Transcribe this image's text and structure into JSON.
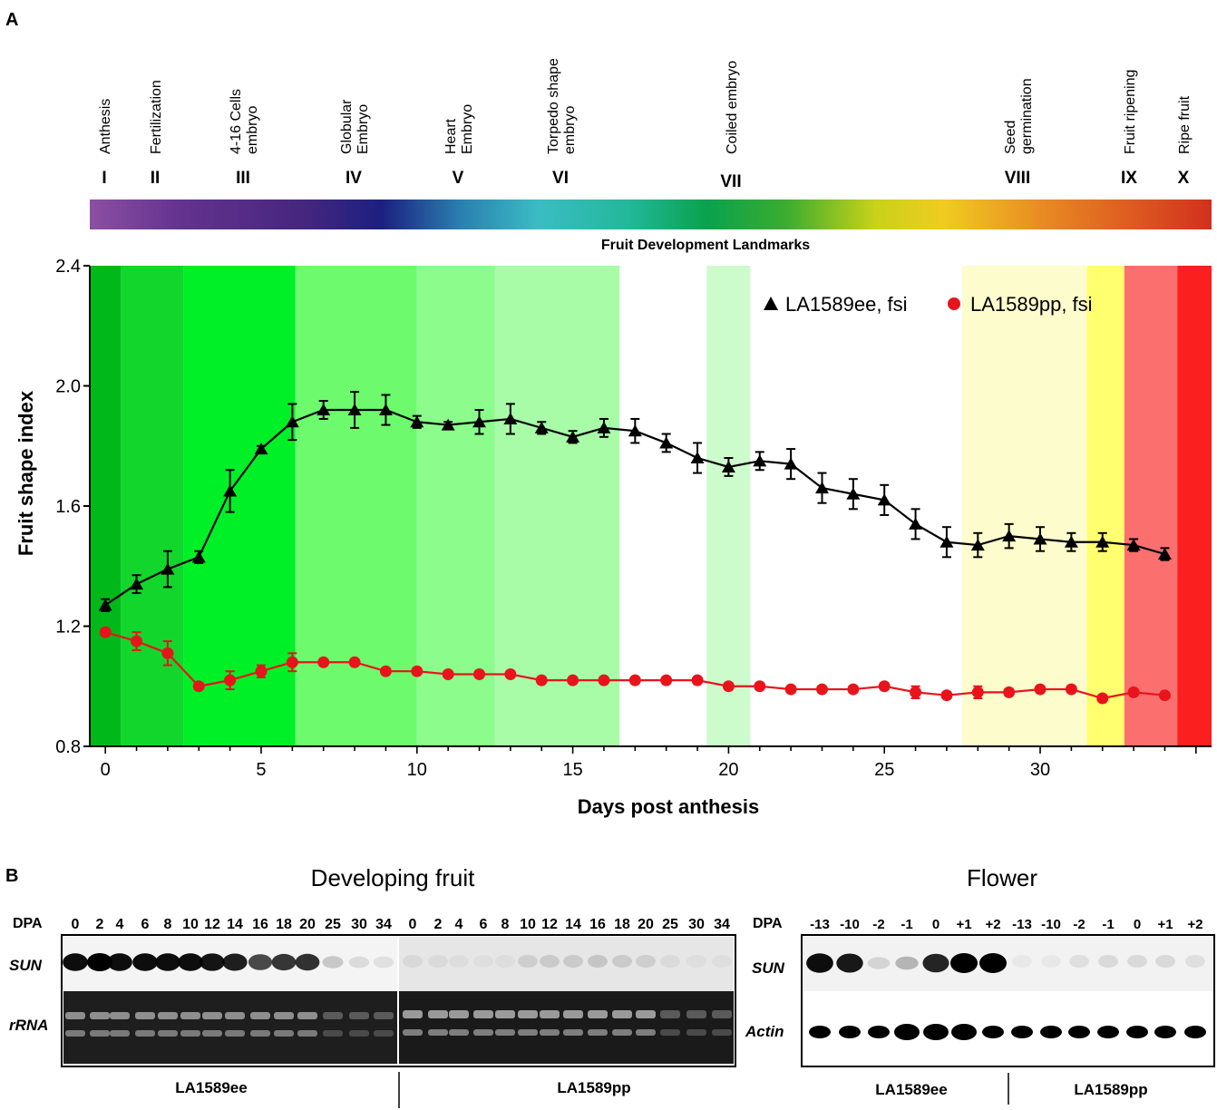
{
  "panel_a": {
    "label": "A",
    "stages": [
      {
        "roman": "I",
        "lines": [
          "Anthesis"
        ]
      },
      {
        "roman": "II",
        "lines": [
          "Fertilization"
        ]
      },
      {
        "roman": "III",
        "lines": [
          "4-16 Cells",
          "embryo"
        ]
      },
      {
        "roman": "IV",
        "lines": [
          "Globular",
          "Embryo"
        ]
      },
      {
        "roman": "V",
        "lines": [
          "Heart",
          "Embryo"
        ]
      },
      {
        "roman": "VI",
        "lines": [
          "Torpedo shape",
          "embryo"
        ]
      },
      {
        "roman": "VII",
        "lines": [
          "Coiled embryo"
        ]
      },
      {
        "roman": "VIII",
        "lines": [
          "Seed",
          "germination"
        ]
      },
      {
        "roman": "IX",
        "lines": [
          "Fruit ripening"
        ]
      },
      {
        "roman": "X",
        "lines": [
          "Ripe fruit"
        ]
      }
    ],
    "landmarks_caption": "Fruit Development Landmarks"
  },
  "chart_data": {
    "type": "line",
    "title": "",
    "xlabel": "Days post anthesis",
    "ylabel": "Fruit shape index",
    "xlim": [
      -0.5,
      35.5
    ],
    "ylim": [
      0.8,
      2.4
    ],
    "xticks": [
      "0",
      "5",
      "10",
      "15",
      "20",
      "25",
      "30"
    ],
    "yticks": [
      "0.8",
      "1.2",
      "1.6",
      "2.0",
      "2.4"
    ],
    "legend_position": "top-right",
    "series": [
      {
        "name": "LA1589ee, fsi",
        "marker": "triangle",
        "color": "#000000",
        "x": [
          0,
          1,
          2,
          3,
          4,
          5,
          6,
          7,
          8,
          9,
          10,
          11,
          12,
          13,
          14,
          15,
          16,
          17,
          18,
          19,
          20,
          21,
          22,
          23,
          24,
          25,
          26,
          27,
          28,
          29,
          30,
          31,
          32,
          33,
          34
        ],
        "y": [
          1.27,
          1.34,
          1.39,
          1.43,
          1.65,
          1.79,
          1.88,
          1.92,
          1.92,
          1.92,
          1.88,
          1.87,
          1.88,
          1.89,
          1.86,
          1.83,
          1.86,
          1.85,
          1.81,
          1.76,
          1.73,
          1.75,
          1.74,
          1.66,
          1.64,
          1.62,
          1.54,
          1.48,
          1.47,
          1.5,
          1.49,
          1.48,
          1.48,
          1.47,
          1.44
        ],
        "err": [
          0.02,
          0.03,
          0.06,
          0.02,
          0.07,
          0.01,
          0.06,
          0.03,
          0.06,
          0.05,
          0.02,
          0.01,
          0.04,
          0.05,
          0.02,
          0.02,
          0.03,
          0.04,
          0.03,
          0.05,
          0.03,
          0.03,
          0.05,
          0.05,
          0.05,
          0.05,
          0.05,
          0.05,
          0.04,
          0.04,
          0.04,
          0.03,
          0.03,
          0.02,
          0.02
        ]
      },
      {
        "name": "LA1589pp, fsi",
        "marker": "circle",
        "color": "#e8141b",
        "x": [
          0,
          1,
          2,
          3,
          4,
          5,
          6,
          7,
          8,
          9,
          10,
          11,
          12,
          13,
          14,
          15,
          16,
          17,
          18,
          19,
          20,
          21,
          22,
          23,
          24,
          25,
          26,
          27,
          28,
          29,
          30,
          31,
          32,
          33,
          34
        ],
        "y": [
          1.18,
          1.15,
          1.11,
          1.0,
          1.02,
          1.05,
          1.08,
          1.08,
          1.08,
          1.05,
          1.05,
          1.04,
          1.04,
          1.04,
          1.02,
          1.02,
          1.02,
          1.02,
          1.02,
          1.02,
          1.0,
          1.0,
          0.99,
          0.99,
          0.99,
          1.0,
          0.98,
          0.97,
          0.98,
          0.98,
          0.99,
          0.99,
          0.96,
          0.98,
          0.97
        ],
        "err": [
          0.01,
          0.03,
          0.04,
          0.01,
          0.03,
          0.02,
          0.03,
          0.01,
          0.01,
          0.01,
          0.01,
          0.01,
          0.01,
          0.01,
          0.01,
          0.01,
          0.01,
          0.01,
          0.01,
          0.01,
          0.01,
          0.01,
          0.01,
          0.01,
          0.01,
          0.01,
          0.02,
          0.01,
          0.02,
          0.01,
          0.01,
          0.01,
          0.01,
          0.01,
          0.01
        ]
      }
    ],
    "background_bands": [
      {
        "x": [
          -0.5,
          0.5
        ],
        "color": "#00b81a"
      },
      {
        "x": [
          0.5,
          2.5
        ],
        "color": "#12d62c"
      },
      {
        "x": [
          2.5,
          6.1
        ],
        "color": "#00f028"
      },
      {
        "x": [
          6.1,
          10.0
        ],
        "color": "#6dfb6d"
      },
      {
        "x": [
          10.0,
          12.5
        ],
        "color": "#8cfc8c"
      },
      {
        "x": [
          12.5,
          16.5
        ],
        "color": "#a8fca8"
      },
      {
        "x": [
          19.3,
          20.7
        ],
        "color": "#ccfccc"
      },
      {
        "x": [
          27.5,
          31.5
        ],
        "color": "#fdfccc"
      },
      {
        "x": [
          31.5,
          32.7
        ],
        "color": "#ffff70"
      },
      {
        "x": [
          32.7,
          34.4
        ],
        "color": "#fb6f6f"
      },
      {
        "x": [
          34.4,
          35.5
        ],
        "color": "#fc1f1f"
      }
    ]
  },
  "panel_b": {
    "label": "B",
    "developing": {
      "title": "Developing fruit",
      "dpa_label": "DPA",
      "lanes_ee": [
        "0",
        "2",
        "4",
        "6",
        "8",
        "10",
        "12",
        "14",
        "16",
        "18",
        "20",
        "25",
        "30",
        "34"
      ],
      "lanes_pp": [
        "0",
        "2",
        "4",
        "6",
        "8",
        "10",
        "12",
        "14",
        "16",
        "18",
        "20",
        "25",
        "30",
        "34"
      ],
      "row_sun": "SUN",
      "row_rrna": "rRNA",
      "group_ee": "LA1589ee",
      "group_pp": "LA1589pp"
    },
    "flower": {
      "title": "Flower",
      "dpa_label": "DPA",
      "lanes_ee": [
        "-13",
        "-10",
        "-2",
        "-1",
        "0",
        "+1",
        "+2"
      ],
      "lanes_pp": [
        "-13",
        "-10",
        "-2",
        "-1",
        "0",
        "+1",
        "+2"
      ],
      "row_sun": "SUN",
      "row_actin": "Actin",
      "group_ee": "LA1589ee",
      "group_pp": "LA1589pp"
    }
  }
}
